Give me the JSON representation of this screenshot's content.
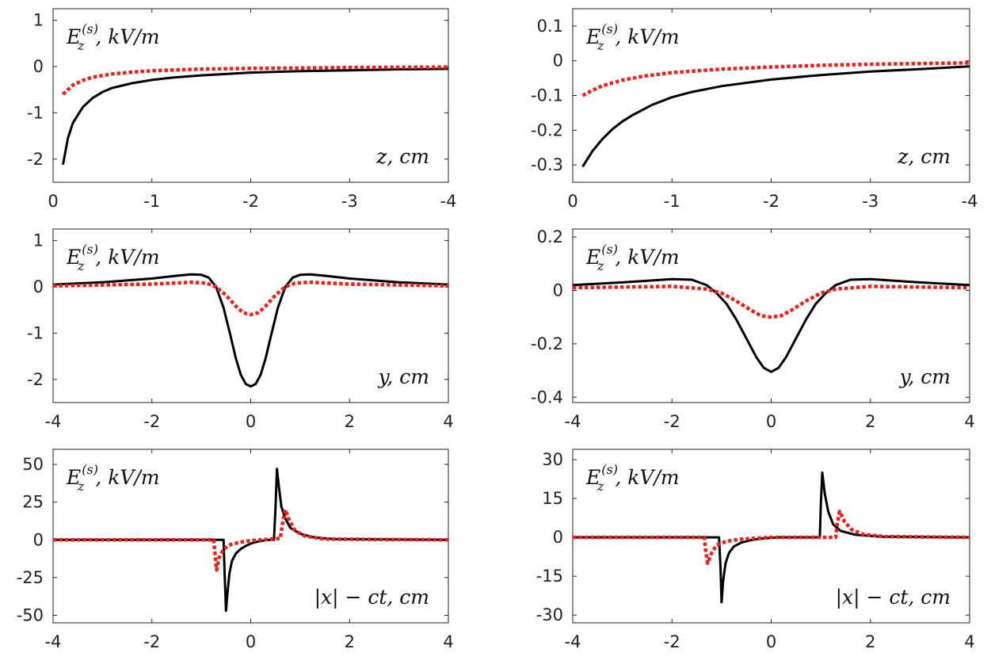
{
  "chart_data": [
    {
      "type": "line",
      "title": "",
      "ylabel": "E_z^(s), kV/m",
      "ylabel_parts": {
        "main": "E",
        "sub": "z",
        "sup": "(s)",
        "unit": ", kV/m"
      },
      "xlabel": "z, cm",
      "xlim": [
        0,
        -4
      ],
      "ylim": [
        -2.5,
        1.25
      ],
      "xticks": [
        0,
        -1,
        -2,
        -3,
        -4
      ],
      "xtick_labels": [
        "0",
        "-1",
        "-2",
        "-3",
        "-4"
      ],
      "yticks": [
        1,
        0,
        -1,
        -2
      ],
      "ytick_labels": [
        "1",
        "0",
        "-1",
        "-2"
      ],
      "series": [
        {
          "name": "black solid",
          "color": "#000000",
          "style": "solid",
          "x": [
            -0.1,
            -0.15,
            -0.2,
            -0.3,
            -0.4,
            -0.5,
            -0.6,
            -0.8,
            -1.0,
            -1.2,
            -1.5,
            -2.0,
            -2.5,
            -3.0,
            -3.5,
            -4.0
          ],
          "y": [
            -2.12,
            -1.55,
            -1.22,
            -0.88,
            -0.68,
            -0.55,
            -0.46,
            -0.36,
            -0.29,
            -0.24,
            -0.19,
            -0.13,
            -0.1,
            -0.08,
            -0.06,
            -0.05
          ]
        },
        {
          "name": "red dotted",
          "color": "#e8231c",
          "style": "dotted",
          "x": [
            -0.1,
            -0.2,
            -0.3,
            -0.4,
            -0.6,
            -0.8,
            -1.0,
            -1.5,
            -2.0,
            -2.5,
            -3.0,
            -3.5,
            -4.0
          ],
          "y": [
            -0.6,
            -0.4,
            -0.3,
            -0.23,
            -0.16,
            -0.12,
            -0.09,
            -0.055,
            -0.04,
            -0.03,
            -0.02,
            -0.015,
            -0.01
          ]
        }
      ]
    },
    {
      "type": "line",
      "title": "",
      "ylabel": "E_z^(s), kV/m",
      "ylabel_parts": {
        "main": "E",
        "sub": "z",
        "sup": "(s)",
        "unit": ", kV/m"
      },
      "xlabel": "z, cm",
      "xlim": [
        0,
        -4
      ],
      "ylim": [
        -0.35,
        0.15
      ],
      "xticks": [
        0,
        -1,
        -2,
        -3,
        -4
      ],
      "xtick_labels": [
        "0",
        "-1",
        "-2",
        "-3",
        "-4"
      ],
      "yticks": [
        0.1,
        0,
        -0.1,
        -0.2,
        -0.3
      ],
      "ytick_labels": [
        "0.1",
        "0",
        "-0.1",
        "-0.2",
        "-0.3"
      ],
      "series": [
        {
          "name": "black solid",
          "color": "#000000",
          "style": "solid",
          "x": [
            -0.1,
            -0.2,
            -0.3,
            -0.4,
            -0.5,
            -0.6,
            -0.8,
            -1.0,
            -1.2,
            -1.5,
            -2.0,
            -2.5,
            -3.0,
            -3.5,
            -4.0
          ],
          "y": [
            -0.305,
            -0.26,
            -0.225,
            -0.197,
            -0.175,
            -0.157,
            -0.127,
            -0.105,
            -0.09,
            -0.073,
            -0.054,
            -0.041,
            -0.031,
            -0.024,
            -0.016
          ]
        },
        {
          "name": "red dotted",
          "color": "#e8231c",
          "style": "dotted",
          "x": [
            -0.1,
            -0.2,
            -0.3,
            -0.5,
            -0.7,
            -1.0,
            -1.5,
            -2.0,
            -2.5,
            -3.0,
            -3.5,
            -4.0
          ],
          "y": [
            -0.1,
            -0.085,
            -0.072,
            -0.056,
            -0.045,
            -0.034,
            -0.024,
            -0.018,
            -0.013,
            -0.01,
            -0.008,
            -0.006
          ]
        }
      ]
    },
    {
      "type": "line",
      "title": "",
      "ylabel": "E_z^(s), kV/m",
      "ylabel_parts": {
        "main": "E",
        "sub": "z",
        "sup": "(s)",
        "unit": ", kV/m"
      },
      "xlabel": "y, cm",
      "xlim": [
        -4,
        4
      ],
      "ylim": [
        -2.5,
        1.25
      ],
      "xticks": [
        -4,
        -2,
        0,
        2,
        4
      ],
      "xtick_labels": [
        "-4",
        "-2",
        "0",
        "2",
        "4"
      ],
      "yticks": [
        1,
        0,
        -1,
        -2
      ],
      "ytick_labels": [
        "1",
        "0",
        "-1",
        "-2"
      ],
      "series": [
        {
          "name": "black solid",
          "color": "#000000",
          "style": "solid",
          "x": [
            -4,
            -3,
            -2,
            -1.5,
            -1.2,
            -1.0,
            -0.85,
            -0.7,
            -0.55,
            -0.4,
            -0.3,
            -0.2,
            -0.1,
            0,
            0.1,
            0.2,
            0.3,
            0.4,
            0.55,
            0.7,
            0.85,
            1.0,
            1.2,
            1.5,
            2,
            3,
            4
          ],
          "y": [
            0.05,
            0.1,
            0.18,
            0.24,
            0.27,
            0.26,
            0.2,
            0.0,
            -0.45,
            -1.1,
            -1.55,
            -1.9,
            -2.1,
            -2.15,
            -2.1,
            -1.9,
            -1.55,
            -1.1,
            -0.45,
            0.0,
            0.2,
            0.26,
            0.27,
            0.24,
            0.18,
            0.1,
            0.05
          ]
        },
        {
          "name": "red dotted",
          "color": "#e8231c",
          "style": "dotted",
          "x": [
            -4,
            -2,
            -1.2,
            -0.9,
            -0.7,
            -0.5,
            -0.3,
            -0.15,
            0,
            0.15,
            0.3,
            0.5,
            0.7,
            0.9,
            1.2,
            2,
            4
          ],
          "y": [
            0.02,
            0.06,
            0.1,
            0.08,
            0.0,
            -0.18,
            -0.42,
            -0.56,
            -0.6,
            -0.56,
            -0.42,
            -0.18,
            0.0,
            0.08,
            0.1,
            0.06,
            0.02
          ]
        }
      ]
    },
    {
      "type": "line",
      "title": "",
      "ylabel": "E_z^(s), kV/m",
      "ylabel_parts": {
        "main": "E",
        "sub": "z",
        "sup": "(s)",
        "unit": ", kV/m"
      },
      "xlabel": "y, cm",
      "xlim": [
        -4,
        4
      ],
      "ylim": [
        -0.42,
        0.23
      ],
      "xticks": [
        -4,
        -2,
        0,
        2,
        4
      ],
      "xtick_labels": [
        "-4",
        "-2",
        "0",
        "2",
        "4"
      ],
      "yticks": [
        0.2,
        0,
        -0.2,
        -0.4
      ],
      "ytick_labels": [
        "0.2",
        "0",
        "-0.2",
        "-0.4"
      ],
      "series": [
        {
          "name": "black solid",
          "color": "#000000",
          "style": "solid",
          "x": [
            -4,
            -3,
            -2,
            -1.6,
            -1.3,
            -1.1,
            -0.9,
            -0.7,
            -0.5,
            -0.3,
            -0.15,
            0,
            0.15,
            0.3,
            0.5,
            0.7,
            0.9,
            1.1,
            1.3,
            1.6,
            2,
            3,
            4
          ],
          "y": [
            0.02,
            0.03,
            0.042,
            0.04,
            0.02,
            -0.01,
            -0.05,
            -0.11,
            -0.18,
            -0.25,
            -0.29,
            -0.305,
            -0.29,
            -0.25,
            -0.18,
            -0.11,
            -0.05,
            -0.01,
            0.02,
            0.04,
            0.042,
            0.03,
            0.02
          ]
        },
        {
          "name": "red dotted",
          "color": "#e8231c",
          "style": "dotted",
          "x": [
            -4,
            -2,
            -1.3,
            -1.0,
            -0.7,
            -0.4,
            -0.2,
            0,
            0.2,
            0.4,
            0.7,
            1.0,
            1.3,
            2,
            4
          ],
          "y": [
            0.01,
            0.015,
            0.005,
            -0.01,
            -0.04,
            -0.075,
            -0.095,
            -0.1,
            -0.095,
            -0.075,
            -0.04,
            -0.01,
            0.005,
            0.015,
            0.01
          ]
        }
      ]
    },
    {
      "type": "line",
      "title": "",
      "ylabel": "E_z^(s), kV/m",
      "ylabel_parts": {
        "main": "E",
        "sub": "z",
        "sup": "(s)",
        "unit": ", kV/m"
      },
      "xlabel": "|x| − ct, cm",
      "xlim": [
        -4,
        4
      ],
      "ylim": [
        -55,
        60
      ],
      "xticks": [
        -4,
        -2,
        0,
        2,
        4
      ],
      "xtick_labels": [
        "-4",
        "-2",
        "0",
        "2",
        "4"
      ],
      "yticks": [
        50,
        25,
        0,
        -25,
        -50
      ],
      "ytick_labels": [
        "50",
        "25",
        "0",
        "-25",
        "-50"
      ],
      "series": [
        {
          "name": "black solid",
          "color": "#000000",
          "style": "solid",
          "x": [
            -4,
            -0.6,
            -0.55,
            -0.53,
            -0.5,
            -0.47,
            -0.43,
            -0.38,
            -0.3,
            -0.2,
            -0.1,
            0,
            0.1,
            0.2,
            0.3,
            0.4,
            0.47,
            0.5,
            0.53,
            0.57,
            0.62,
            0.7,
            0.8,
            1.0,
            1.3,
            1.7,
            4
          ],
          "y": [
            0,
            0,
            0,
            -20,
            -47,
            -35,
            -22,
            -14,
            -9,
            -6,
            -4,
            -2.5,
            -1.5,
            -0.8,
            -0.3,
            0,
            0,
            20,
            47,
            35,
            22,
            14,
            8,
            4,
            1.5,
            0.5,
            0
          ]
        },
        {
          "name": "red dotted",
          "color": "#e8231c",
          "style": "dotted",
          "x": [
            -4,
            -0.75,
            -0.72,
            -0.69,
            -0.64,
            -0.55,
            -0.4,
            -0.2,
            0,
            0.2,
            0.4,
            0.6,
            0.64,
            0.7,
            0.78,
            0.9,
            1.1,
            1.5,
            4
          ],
          "y": [
            0,
            0,
            -10,
            -20,
            -12,
            -6,
            -3,
            -1.5,
            -0.5,
            0,
            0.5,
            1,
            10,
            20,
            13,
            6,
            2.5,
            0.5,
            0
          ]
        }
      ]
    },
    {
      "type": "line",
      "title": "",
      "ylabel": "E_z^(s), kV/m",
      "ylabel_parts": {
        "main": "E",
        "sub": "z",
        "sup": "(s)",
        "unit": ", kV/m"
      },
      "xlabel": "|x| − ct, cm",
      "xlim": [
        -4,
        4
      ],
      "ylim": [
        -33,
        34
      ],
      "xticks": [
        -4,
        -2,
        0,
        2,
        4
      ],
      "xtick_labels": [
        "-4",
        "-2",
        "0",
        "2",
        "4"
      ],
      "yticks": [
        30,
        15,
        0,
        -15,
        -30
      ],
      "ytick_labels": [
        "30",
        "15",
        "0",
        "-15",
        "-30"
      ],
      "series": [
        {
          "name": "black solid",
          "color": "#000000",
          "style": "solid",
          "x": [
            -4,
            -1.05,
            -1.02,
            -1.0,
            -0.97,
            -0.92,
            -0.85,
            -0.75,
            -0.6,
            -0.4,
            -0.2,
            0,
            0.2,
            0.4,
            0.6,
            0.8,
            0.98,
            1.0,
            1.03,
            1.08,
            1.15,
            1.25,
            1.4,
            1.7,
            2.2,
            4
          ],
          "y": [
            0,
            0,
            -12,
            -25,
            -17,
            -10,
            -6,
            -3.5,
            -2,
            -1,
            -0.5,
            -0.2,
            0,
            0,
            0,
            0,
            0,
            12,
            25,
            17,
            10,
            5,
            2.5,
            1,
            0.3,
            0
          ]
        },
        {
          "name": "red dotted",
          "color": "#e8231c",
          "style": "dotted",
          "x": [
            -4,
            -1.35,
            -1.32,
            -1.28,
            -1.2,
            -1.1,
            -0.9,
            -0.6,
            -0.3,
            0,
            0.3,
            0.6,
            0.9,
            1.2,
            1.3,
            1.33,
            1.38,
            1.48,
            1.62,
            1.85,
            2.3,
            4
          ],
          "y": [
            0,
            0,
            -5,
            -10,
            -6,
            -3,
            -1.5,
            -0.7,
            -0.3,
            0,
            0,
            0,
            0,
            0,
            0,
            5,
            10,
            6,
            3,
            1.2,
            0.3,
            0
          ]
        }
      ]
    }
  ]
}
